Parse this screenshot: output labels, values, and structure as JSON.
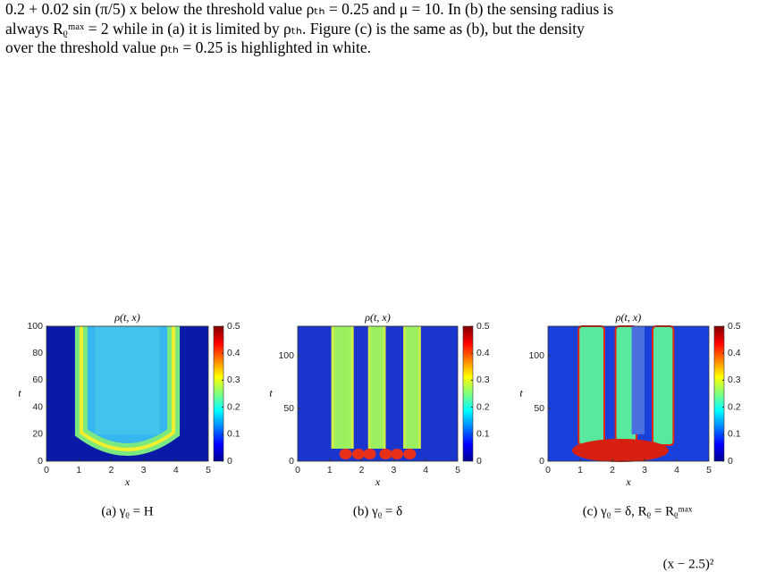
{
  "paragraph": [
    "0.2 + 0.02 sin (π/5) x below the threshold value ρₜₕ = 0.25 and μ = 10. In (b) the sensing radius is",
    "always Rᵨᵐᵃˣ = 2 while in (a) it is limited by ρₜₕ. Figure (c) is the same as (b), but the density",
    "over the threshold value ρₜₕ = 0.25 is highlighted in white."
  ],
  "figures": [
    {
      "title": "ρ(t, x)",
      "xlabel": "x",
      "ylabel": "t",
      "xlim": [
        0,
        5
      ],
      "xticks": [
        0,
        1,
        2,
        3,
        4,
        5
      ],
      "ylim": [
        0,
        100
      ],
      "yticks": [
        0,
        20,
        40,
        60,
        80,
        100
      ],
      "clim": [
        0,
        0.5
      ],
      "cticks": [
        0,
        0.1,
        0.2,
        0.3,
        0.4,
        0.5
      ],
      "caption": "(a) γᵨ = H"
    },
    {
      "title": "ρ(t, x)",
      "xlabel": "x",
      "ylabel": "t",
      "xlim": [
        0,
        5
      ],
      "xticks": [
        0,
        1,
        2,
        3,
        4,
        5
      ],
      "ylim": [
        0,
        128
      ],
      "yticks": [
        0,
        50,
        100
      ],
      "clim": [
        0,
        0.5
      ],
      "cticks": [
        0,
        0.1,
        0.2,
        0.3,
        0.4,
        0.5
      ],
      "caption": "(b) γᵨ = δ"
    },
    {
      "title": "ρ(t, x)",
      "xlabel": "x",
      "ylabel": "t",
      "xlim": [
        0,
        5
      ],
      "xticks": [
        0,
        1,
        2,
        3,
        4,
        5
      ],
      "ylim": [
        0,
        128
      ],
      "yticks": [
        0,
        50,
        100
      ],
      "clim": [
        0,
        0.5
      ],
      "cticks": [
        0,
        0.1,
        0.2,
        0.3,
        0.4,
        0.5
      ],
      "caption": "(c) γᵨ = δ, Rᵨ = Rᵨᵐᵃˣ"
    }
  ],
  "footer_fragment": "(x − 2.5)²"
}
